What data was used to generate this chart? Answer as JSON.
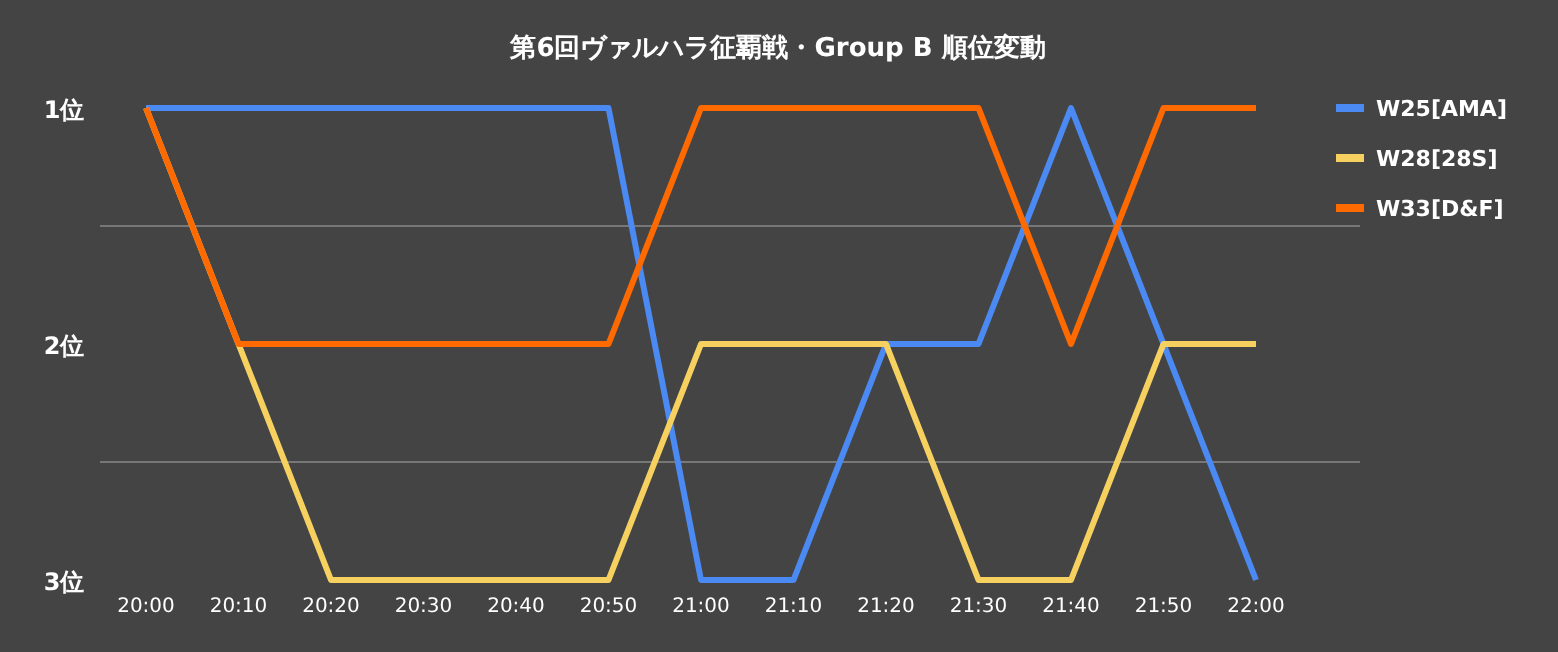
{
  "chart_data": {
    "type": "line",
    "title": "第6回ヴァルハラ征覇戦・Group B 順位変動",
    "categories": [
      "20:00",
      "20:10",
      "20:20",
      "20:30",
      "20:40",
      "20:50",
      "21:00",
      "21:10",
      "21:20",
      "21:30",
      "21:40",
      "21:50",
      "22:00"
    ],
    "series": [
      {
        "name": "W25[AMA]",
        "color": "#4b8af2",
        "values": [
          1,
          1,
          1,
          1,
          1,
          1,
          3,
          3,
          2,
          2,
          1,
          2,
          3
        ]
      },
      {
        "name": "W28[28S]",
        "color": "#f7d15f",
        "values": [
          1,
          2,
          3,
          3,
          3,
          3,
          2,
          2,
          2,
          3,
          3,
          2,
          2
        ]
      },
      {
        "name": "W33[D&F]",
        "color": "#ff6a00",
        "values": [
          1,
          2,
          2,
          2,
          2,
          2,
          1,
          1,
          1,
          1,
          2,
          1,
          1
        ]
      }
    ],
    "ylim": [
      3,
      1
    ],
    "yticks": [
      {
        "value": 1,
        "label": "1位"
      },
      {
        "value": 1.5,
        "label": null
      },
      {
        "value": 2,
        "label": "2位"
      },
      {
        "value": 2.5,
        "label": null
      },
      {
        "value": 3,
        "label": "3位"
      }
    ],
    "grid": "y",
    "legend": "right",
    "marker": "none",
    "line_style": "solid"
  }
}
